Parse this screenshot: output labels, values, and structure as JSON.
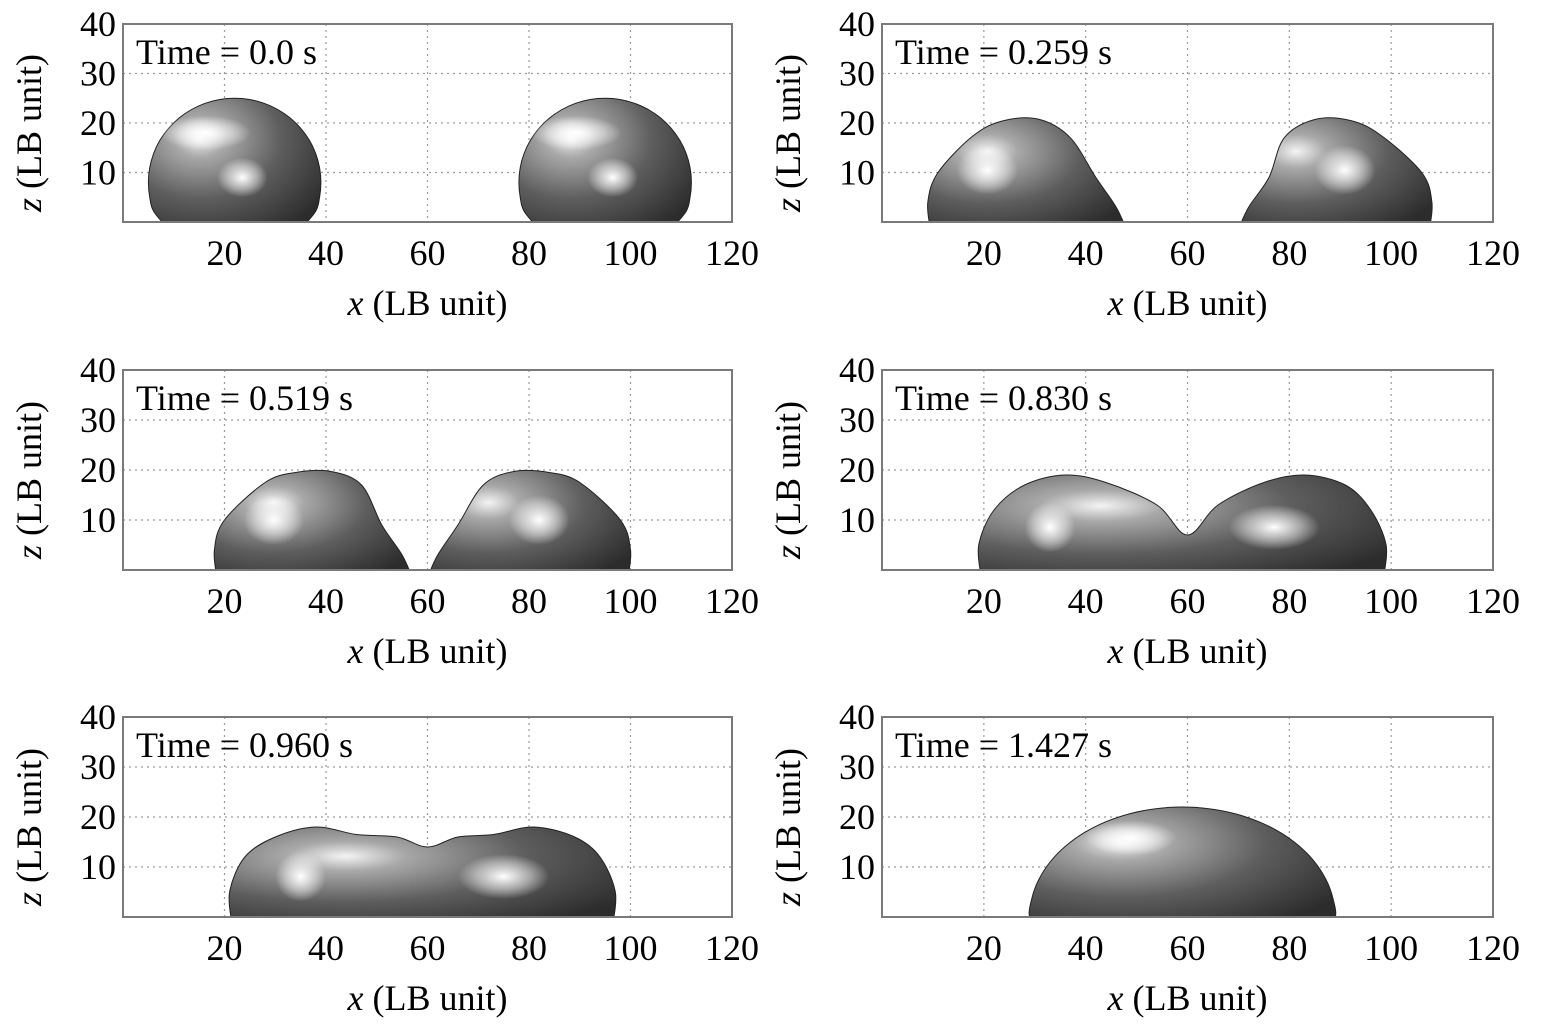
{
  "figure": {
    "xlabel": {
      "var": "x",
      "unit": "(LB unit)"
    },
    "ylabel": {
      "var": "z",
      "unit": "(LB unit)"
    },
    "xticks": [
      "20",
      "40",
      "60",
      "80",
      "100",
      "120"
    ],
    "yticks": [
      "40",
      "30",
      "20",
      "10"
    ],
    "time_labels": [
      "Time = 0.0 s",
      "Time = 0.259 s",
      "Time = 0.519 s",
      "Time = 0.830 s",
      "Time = 0.960 s",
      "Time = 1.427 s"
    ]
  },
  "chart_data": [
    {
      "type": "area",
      "title": "",
      "annotation": "Time = 0.0 s",
      "xlabel": "x (LB unit)",
      "ylabel": "z (LB unit)",
      "xlim": [
        0,
        120
      ],
      "ylim": [
        0,
        40
      ],
      "grid": true,
      "droplets": [
        {
          "shape": "cap",
          "x_left": 5,
          "x_right": 39,
          "center_x": 22,
          "height": 25,
          "y_center": 8
        },
        {
          "shape": "cap",
          "x_left": 78,
          "x_right": 112,
          "center_x": 95,
          "height": 25,
          "y_center": 8
        }
      ]
    },
    {
      "type": "area",
      "title": "",
      "annotation": "Time = 0.259 s",
      "xlabel": "x (LB unit)",
      "ylabel": "z (LB unit)",
      "xlim": [
        0,
        120
      ],
      "ylim": [
        0,
        40
      ],
      "grid": true,
      "droplets": [
        {
          "shape": "tilted",
          "x_left": 9,
          "x_right": 48,
          "peak_x": 24,
          "height": 21,
          "lean": "right"
        },
        {
          "shape": "tilted",
          "x_left": 70,
          "x_right": 108,
          "peak_x": 92,
          "height": 21,
          "lean": "left"
        }
      ]
    },
    {
      "type": "area",
      "title": "",
      "annotation": "Time = 0.519 s",
      "xlabel": "x (LB unit)",
      "ylabel": "z (LB unit)",
      "xlim": [
        0,
        120
      ],
      "ylim": [
        0,
        40
      ],
      "grid": true,
      "droplets": [
        {
          "shape": "tilted",
          "x_left": 18,
          "x_right": 57,
          "peak_x": 34,
          "height": 20,
          "lean": "right"
        },
        {
          "shape": "tilted",
          "x_left": 60,
          "x_right": 100,
          "peak_x": 84,
          "height": 20,
          "lean": "left"
        }
      ]
    },
    {
      "type": "area",
      "title": "",
      "annotation": "Time = 0.830 s",
      "xlabel": "x (LB unit)",
      "ylabel": "z (LB unit)",
      "xlim": [
        0,
        120
      ],
      "ylim": [
        0,
        40
      ],
      "grid": true,
      "droplets": [
        {
          "shape": "merged",
          "x_left": 19,
          "x_right": 99,
          "peaks": [
            [
              36,
              19
            ],
            [
              83,
              19
            ]
          ],
          "neck": [
            60,
            7
          ]
        }
      ]
    },
    {
      "type": "area",
      "title": "",
      "annotation": "Time = 0.960 s",
      "xlabel": "x (LB unit)",
      "ylabel": "z (LB unit)",
      "xlim": [
        0,
        120
      ],
      "ylim": [
        0,
        40
      ],
      "grid": true,
      "droplets": [
        {
          "shape": "merged",
          "x_left": 21,
          "x_right": 97,
          "peaks": [
            [
              38,
              18
            ],
            [
              81,
              18
            ]
          ],
          "neck": [
            60,
            14
          ]
        }
      ]
    },
    {
      "type": "area",
      "title": "",
      "annotation": "Time = 1.427 s",
      "xlabel": "x (LB unit)",
      "ylabel": "z (LB unit)",
      "xlim": [
        0,
        120
      ],
      "ylim": [
        0,
        40
      ],
      "grid": true,
      "droplets": [
        {
          "shape": "cap",
          "x_left": 29,
          "x_right": 89,
          "center_x": 59,
          "height": 22,
          "y_center": 0
        }
      ]
    }
  ]
}
